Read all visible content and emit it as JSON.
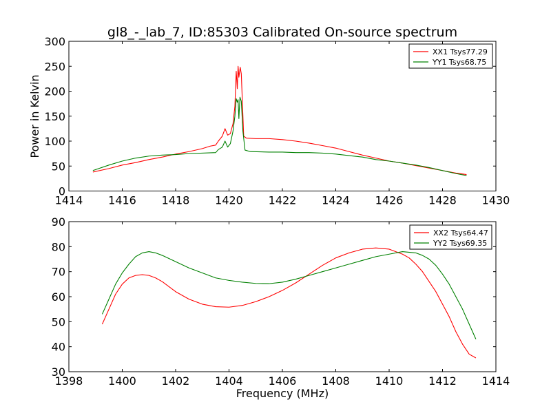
{
  "figure": {
    "title": "gl8_-_lab_7, ID:85303 Calibrated On-source spectrum",
    "colors": {
      "XX": "#ff0000",
      "YY": "#008000"
    }
  },
  "chart_data": [
    {
      "type": "line",
      "title": "gl8_-_lab_7, ID:85303 Calibrated On-source spectrum",
      "xlabel": "",
      "ylabel": "Power in Kelvin",
      "xlim": [
        1414,
        1430
      ],
      "ylim": [
        0,
        300
      ],
      "xticks": [
        1414,
        1416,
        1418,
        1420,
        1422,
        1424,
        1426,
        1428,
        1430
      ],
      "yticks": [
        0,
        50,
        100,
        150,
        200,
        250,
        300
      ],
      "grid": false,
      "legend_position": "top-right",
      "series": [
        {
          "name": "XX1 Tsys77.29",
          "color": "#ff0000",
          "points": [
            [
              1414.9,
              38
            ],
            [
              1415.5,
              45
            ],
            [
              1416,
              52
            ],
            [
              1416.5,
              57
            ],
            [
              1417,
              63
            ],
            [
              1417.5,
              68
            ],
            [
              1418,
              74
            ],
            [
              1418.5,
              79
            ],
            [
              1419,
              85
            ],
            [
              1419.3,
              90
            ],
            [
              1419.5,
              92
            ],
            [
              1419.6,
              100
            ],
            [
              1419.75,
              110
            ],
            [
              1419.85,
              125
            ],
            [
              1419.95,
              112
            ],
            [
              1420.05,
              115
            ],
            [
              1420.15,
              135
            ],
            [
              1420.22,
              170
            ],
            [
              1420.27,
              240
            ],
            [
              1420.31,
              205
            ],
            [
              1420.34,
              250
            ],
            [
              1420.37,
              228
            ],
            [
              1420.42,
              248
            ],
            [
              1420.46,
              235
            ],
            [
              1420.5,
              180
            ],
            [
              1420.55,
              110
            ],
            [
              1420.65,
              106
            ],
            [
              1421,
              105
            ],
            [
              1421.5,
              105
            ],
            [
              1422,
              103
            ],
            [
              1422.5,
              100
            ],
            [
              1423,
              96
            ],
            [
              1423.5,
              91
            ],
            [
              1424,
              86
            ],
            [
              1424.5,
              79
            ],
            [
              1425,
              72
            ],
            [
              1425.5,
              66
            ],
            [
              1426,
              60
            ],
            [
              1426.5,
              56
            ],
            [
              1427,
              51
            ],
            [
              1427.5,
              46
            ],
            [
              1428,
              41
            ],
            [
              1428.5,
              36
            ],
            [
              1428.9,
              33
            ]
          ]
        },
        {
          "name": "YY1 Tsys68.75",
          "color": "#008000",
          "points": [
            [
              1414.9,
              41
            ],
            [
              1415.5,
              52
            ],
            [
              1416,
              60
            ],
            [
              1416.5,
              66
            ],
            [
              1417,
              70
            ],
            [
              1417.5,
              72
            ],
            [
              1418,
              73
            ],
            [
              1418.5,
              75
            ],
            [
              1419,
              76
            ],
            [
              1419.5,
              77
            ],
            [
              1419.6,
              83
            ],
            [
              1419.75,
              88
            ],
            [
              1419.85,
              100
            ],
            [
              1419.95,
              88
            ],
            [
              1420.05,
              95
            ],
            [
              1420.15,
              120
            ],
            [
              1420.22,
              150
            ],
            [
              1420.27,
              185
            ],
            [
              1420.31,
              178
            ],
            [
              1420.34,
              183
            ],
            [
              1420.37,
              145
            ],
            [
              1420.41,
              188
            ],
            [
              1420.46,
              180
            ],
            [
              1420.52,
              120
            ],
            [
              1420.6,
              82
            ],
            [
              1420.8,
              79
            ],
            [
              1421.5,
              78
            ],
            [
              1422,
              78
            ],
            [
              1422.5,
              77
            ],
            [
              1423,
              77
            ],
            [
              1423.5,
              76
            ],
            [
              1424,
              74
            ],
            [
              1424.5,
              71
            ],
            [
              1425,
              68
            ],
            [
              1425.5,
              63
            ],
            [
              1426,
              60
            ],
            [
              1426.5,
              56
            ],
            [
              1427,
              52
            ],
            [
              1427.5,
              47
            ],
            [
              1428,
              41
            ],
            [
              1428.5,
              35
            ],
            [
              1428.9,
              31
            ]
          ]
        }
      ]
    },
    {
      "type": "line",
      "title": "",
      "xlabel": "Frequency (MHz)",
      "ylabel": "",
      "xlim": [
        1398,
        1414
      ],
      "ylim": [
        30,
        90
      ],
      "xticks": [
        1398,
        1400,
        1402,
        1404,
        1406,
        1408,
        1410,
        1412,
        1414
      ],
      "yticks": [
        30,
        40,
        50,
        60,
        70,
        80,
        90
      ],
      "grid": false,
      "legend_position": "top-right",
      "series": [
        {
          "name": "XX2 Tsys64.47",
          "color": "#ff0000",
          "points": [
            [
              1399.25,
              49
            ],
            [
              1399.5,
              55
            ],
            [
              1399.75,
              61
            ],
            [
              1400,
              65
            ],
            [
              1400.25,
              67.5
            ],
            [
              1400.5,
              68.5
            ],
            [
              1400.75,
              68.8
            ],
            [
              1401,
              68.5
            ],
            [
              1401.25,
              67.5
            ],
            [
              1401.5,
              66
            ],
            [
              1401.75,
              64
            ],
            [
              1402,
              62
            ],
            [
              1402.5,
              59
            ],
            [
              1403,
              57
            ],
            [
              1403.5,
              56
            ],
            [
              1404,
              55.8
            ],
            [
              1404.5,
              56.5
            ],
            [
              1405,
              58
            ],
            [
              1405.5,
              60
            ],
            [
              1406,
              62.5
            ],
            [
              1406.5,
              65.5
            ],
            [
              1407,
              69
            ],
            [
              1407.5,
              72.5
            ],
            [
              1408,
              75.5
            ],
            [
              1408.5,
              77.5
            ],
            [
              1409,
              79
            ],
            [
              1409.5,
              79.5
            ],
            [
              1410,
              79
            ],
            [
              1410.5,
              77
            ],
            [
              1410.75,
              75.5
            ],
            [
              1411,
              73
            ],
            [
              1411.25,
              70
            ],
            [
              1411.5,
              66
            ],
            [
              1411.75,
              62
            ],
            [
              1412,
              57
            ],
            [
              1412.25,
              52
            ],
            [
              1412.5,
              46
            ],
            [
              1412.75,
              41
            ],
            [
              1413,
              37
            ],
            [
              1413.25,
              35.5
            ]
          ]
        },
        {
          "name": "YY2 Tsys69.35",
          "color": "#008000",
          "points": [
            [
              1399.25,
              53
            ],
            [
              1399.5,
              59
            ],
            [
              1399.75,
              65
            ],
            [
              1400,
              69.5
            ],
            [
              1400.25,
              73
            ],
            [
              1400.5,
              76
            ],
            [
              1400.75,
              77.5
            ],
            [
              1401,
              78
            ],
            [
              1401.25,
              77.5
            ],
            [
              1401.5,
              76.5
            ],
            [
              1402,
              74
            ],
            [
              1402.5,
              71.5
            ],
            [
              1403,
              69.5
            ],
            [
              1403.5,
              67.5
            ],
            [
              1404,
              66.5
            ],
            [
              1404.5,
              65.8
            ],
            [
              1405,
              65.3
            ],
            [
              1405.5,
              65.2
            ],
            [
              1406,
              65.8
            ],
            [
              1406.5,
              67
            ],
            [
              1407,
              68.5
            ],
            [
              1407.5,
              70
            ],
            [
              1408,
              71.5
            ],
            [
              1408.5,
              73
            ],
            [
              1409,
              74.5
            ],
            [
              1409.5,
              76
            ],
            [
              1410,
              77
            ],
            [
              1410.5,
              78
            ],
            [
              1411,
              77.5
            ],
            [
              1411.25,
              76.5
            ],
            [
              1411.5,
              75
            ],
            [
              1411.75,
              72.5
            ],
            [
              1412,
              69
            ],
            [
              1412.25,
              65
            ],
            [
              1412.5,
              60
            ],
            [
              1412.75,
              55
            ],
            [
              1413,
              49
            ],
            [
              1413.25,
              43
            ]
          ]
        }
      ]
    }
  ]
}
